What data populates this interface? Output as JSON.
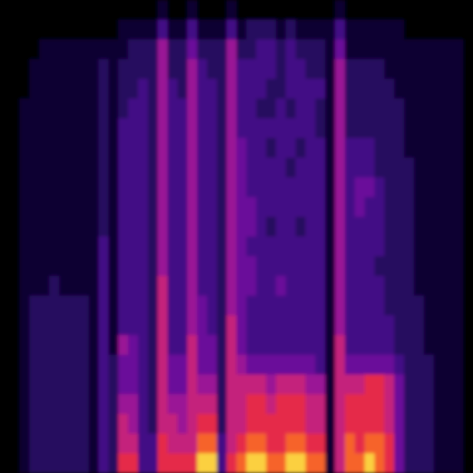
{
  "chart_data": {
    "type": "heatmap",
    "tick_labels": false,
    "zlim": [
      0,
      9
    ],
    "cells": [
      [
        0,
        0,
        0,
        0,
        0,
        0,
        0,
        0,
        0,
        0,
        0,
        0,
        0,
        0,
        0,
        0,
        1,
        0,
        0,
        1,
        0,
        0,
        0,
        1,
        0,
        0,
        0,
        0,
        0,
        0,
        0,
        0,
        0,
        0,
        1,
        0,
        0,
        0,
        0,
        0,
        0,
        0,
        0,
        0,
        0,
        0,
        0,
        0
      ],
      [
        0,
        0,
        0,
        0,
        0,
        0,
        0,
        0,
        0,
        0,
        0,
        0,
        1,
        1,
        1,
        1,
        3,
        1,
        1,
        3,
        1,
        1,
        1,
        3,
        1,
        2,
        2,
        2,
        1,
        2,
        1,
        1,
        1,
        1,
        3,
        1,
        1,
        1,
        1,
        1,
        1,
        0,
        0,
        0,
        0,
        0,
        0,
        0
      ],
      [
        0,
        0,
        0,
        0,
        1,
        1,
        1,
        1,
        1,
        1,
        1,
        1,
        1,
        2,
        2,
        2,
        5,
        2,
        2,
        4,
        2,
        2,
        2,
        5,
        2,
        2,
        3,
        3,
        2,
        3,
        2,
        2,
        2,
        1,
        4,
        1,
        1,
        1,
        1,
        1,
        1,
        1,
        1,
        1,
        1,
        1,
        1,
        0
      ],
      [
        0,
        0,
        0,
        1,
        1,
        1,
        1,
        1,
        1,
        1,
        2,
        1,
        2,
        2,
        2,
        2,
        5,
        2,
        2,
        5,
        3,
        2,
        2,
        5,
        3,
        3,
        3,
        3,
        2,
        3,
        3,
        2,
        2,
        1,
        5,
        2,
        2,
        2,
        2,
        1,
        1,
        1,
        1,
        1,
        1,
        1,
        1,
        0
      ],
      [
        0,
        0,
        0,
        1,
        1,
        1,
        1,
        1,
        1,
        1,
        2,
        1,
        2,
        2,
        3,
        2,
        5,
        3,
        2,
        5,
        3,
        3,
        2,
        5,
        3,
        3,
        3,
        2,
        2,
        3,
        3,
        3,
        3,
        1,
        5,
        2,
        2,
        2,
        2,
        2,
        1,
        1,
        1,
        1,
        1,
        1,
        1,
        0
      ],
      [
        0,
        0,
        1,
        1,
        1,
        1,
        1,
        1,
        1,
        1,
        2,
        1,
        2,
        3,
        3,
        2,
        5,
        3,
        3,
        5,
        3,
        3,
        2,
        5,
        3,
        3,
        2,
        2,
        3,
        2,
        3,
        3,
        2,
        1,
        5,
        2,
        2,
        2,
        2,
        2,
        2,
        1,
        1,
        1,
        1,
        1,
        1,
        0
      ],
      [
        0,
        0,
        1,
        1,
        1,
        1,
        1,
        1,
        1,
        1,
        2,
        1,
        3,
        3,
        3,
        2,
        5,
        3,
        3,
        5,
        3,
        3,
        2,
        5,
        3,
        3,
        3,
        3,
        3,
        3,
        3,
        3,
        2,
        1,
        5,
        2,
        2,
        2,
        2,
        2,
        2,
        1,
        1,
        1,
        1,
        1,
        1,
        0
      ],
      [
        0,
        0,
        1,
        1,
        1,
        1,
        1,
        1,
        1,
        1,
        2,
        1,
        3,
        3,
        3,
        2,
        5,
        3,
        3,
        5,
        3,
        3,
        2,
        5,
        4,
        3,
        3,
        2,
        3,
        3,
        2,
        3,
        3,
        1,
        5,
        3,
        3,
        3,
        2,
        2,
        2,
        1,
        1,
        1,
        1,
        1,
        1,
        0
      ],
      [
        0,
        0,
        1,
        1,
        1,
        1,
        1,
        1,
        1,
        1,
        2,
        1,
        3,
        3,
        3,
        2,
        5,
        3,
        3,
        5,
        3,
        3,
        2,
        5,
        4,
        3,
        3,
        3,
        3,
        2,
        3,
        3,
        3,
        1,
        5,
        3,
        3,
        3,
        2,
        2,
        2,
        2,
        1,
        1,
        1,
        1,
        1,
        0
      ],
      [
        0,
        0,
        1,
        1,
        1,
        1,
        1,
        1,
        1,
        1,
        2,
        1,
        3,
        3,
        3,
        2,
        5,
        3,
        3,
        5,
        3,
        3,
        2,
        5,
        4,
        3,
        3,
        3,
        3,
        3,
        3,
        3,
        3,
        1,
        5,
        3,
        4,
        4,
        3,
        2,
        2,
        2,
        1,
        1,
        1,
        1,
        1,
        0
      ],
      [
        0,
        0,
        1,
        1,
        1,
        1,
        1,
        1,
        1,
        1,
        2,
        1,
        3,
        3,
        3,
        2,
        5,
        3,
        3,
        5,
        3,
        3,
        2,
        5,
        4,
        4,
        3,
        3,
        3,
        3,
        3,
        3,
        3,
        1,
        5,
        3,
        4,
        3,
        3,
        2,
        2,
        2,
        1,
        1,
        1,
        1,
        1,
        0
      ],
      [
        0,
        0,
        1,
        1,
        1,
        1,
        1,
        1,
        1,
        1,
        2,
        1,
        3,
        3,
        3,
        2,
        5,
        3,
        3,
        5,
        3,
        3,
        2,
        5,
        4,
        4,
        3,
        2,
        3,
        3,
        2,
        3,
        3,
        1,
        5,
        3,
        3,
        3,
        3,
        2,
        2,
        2,
        1,
        1,
        1,
        1,
        1,
        0
      ],
      [
        0,
        0,
        1,
        1,
        1,
        1,
        1,
        1,
        1,
        1,
        3,
        1,
        3,
        3,
        3,
        2,
        5,
        3,
        3,
        5,
        3,
        3,
        2,
        5,
        4,
        3,
        3,
        3,
        3,
        3,
        3,
        3,
        3,
        1,
        5,
        3,
        3,
        3,
        3,
        2,
        2,
        2,
        1,
        1,
        1,
        1,
        1,
        0
      ],
      [
        0,
        0,
        1,
        1,
        1,
        1,
        1,
        1,
        1,
        1,
        3,
        1,
        3,
        3,
        3,
        2,
        5,
        3,
        3,
        5,
        3,
        3,
        2,
        5,
        4,
        4,
        3,
        3,
        3,
        3,
        3,
        3,
        3,
        1,
        5,
        3,
        3,
        3,
        2,
        2,
        2,
        2,
        1,
        1,
        1,
        1,
        1,
        0
      ],
      [
        0,
        0,
        1,
        1,
        1,
        2,
        1,
        1,
        1,
        1,
        3,
        1,
        3,
        3,
        3,
        2,
        6,
        3,
        3,
        5,
        3,
        3,
        2,
        5,
        4,
        4,
        3,
        3,
        4,
        3,
        3,
        3,
        3,
        1,
        5,
        3,
        3,
        3,
        3,
        2,
        2,
        2,
        1,
        1,
        1,
        1,
        1,
        0
      ],
      [
        0,
        0,
        1,
        2,
        2,
        2,
        2,
        2,
        2,
        1,
        3,
        1,
        3,
        3,
        3,
        2,
        6,
        3,
        3,
        5,
        4,
        3,
        2,
        5,
        4,
        3,
        3,
        3,
        3,
        3,
        3,
        3,
        3,
        1,
        5,
        3,
        3,
        3,
        3,
        2,
        2,
        2,
        2,
        1,
        1,
        1,
        1,
        0
      ],
      [
        0,
        0,
        1,
        2,
        2,
        2,
        2,
        2,
        2,
        1,
        3,
        1,
        3,
        3,
        3,
        2,
        6,
        3,
        3,
        5,
        4,
        3,
        2,
        6,
        4,
        3,
        3,
        3,
        3,
        3,
        3,
        3,
        3,
        1,
        5,
        3,
        3,
        3,
        3,
        3,
        2,
        2,
        2,
        1,
        1,
        1,
        1,
        0
      ],
      [
        0,
        0,
        1,
        2,
        2,
        2,
        2,
        2,
        2,
        1,
        3,
        1,
        5,
        4,
        3,
        2,
        6,
        3,
        3,
        6,
        4,
        4,
        2,
        6,
        4,
        3,
        3,
        3,
        3,
        3,
        3,
        3,
        3,
        1,
        6,
        3,
        3,
        3,
        3,
        3,
        2,
        2,
        2,
        1,
        1,
        1,
        1,
        0
      ],
      [
        0,
        0,
        1,
        2,
        2,
        2,
        2,
        2,
        2,
        1,
        3,
        2,
        4,
        4,
        3,
        2,
        6,
        4,
        4,
        6,
        4,
        4,
        2,
        6,
        5,
        4,
        4,
        4,
        4,
        4,
        4,
        4,
        3,
        1,
        6,
        4,
        4,
        4,
        4,
        4,
        3,
        2,
        2,
        2,
        1,
        1,
        1,
        0
      ],
      [
        0,
        0,
        1,
        2,
        2,
        2,
        2,
        2,
        2,
        1,
        3,
        2,
        4,
        4,
        3,
        2,
        6,
        4,
        4,
        6,
        5,
        5,
        2,
        6,
        6,
        6,
        6,
        5,
        6,
        6,
        6,
        5,
        5,
        1,
        6,
        6,
        6,
        7,
        7,
        6,
        4,
        2,
        2,
        2,
        1,
        1,
        1,
        0
      ],
      [
        0,
        0,
        1,
        2,
        2,
        2,
        2,
        2,
        2,
        1,
        3,
        2,
        5,
        5,
        3,
        2,
        6,
        5,
        5,
        6,
        6,
        6,
        2,
        6,
        6,
        7,
        7,
        6,
        7,
        7,
        7,
        6,
        6,
        1,
        6,
        7,
        7,
        7,
        7,
        6,
        4,
        2,
        2,
        2,
        1,
        1,
        1,
        0
      ],
      [
        0,
        0,
        1,
        2,
        2,
        2,
        2,
        2,
        2,
        1,
        3,
        2,
        6,
        5,
        3,
        2,
        6,
        6,
        5,
        6,
        7,
        7,
        2,
        6,
        6,
        7,
        7,
        7,
        7,
        7,
        7,
        6,
        6,
        1,
        6,
        7,
        7,
        7,
        7,
        6,
        4,
        2,
        2,
        2,
        1,
        1,
        1,
        0
      ],
      [
        0,
        0,
        1,
        2,
        2,
        2,
        2,
        2,
        2,
        1,
        3,
        2,
        6,
        6,
        3,
        3,
        7,
        6,
        6,
        6,
        8,
        8,
        3,
        6,
        7,
        8,
        8,
        7,
        7,
        8,
        8,
        7,
        7,
        1,
        6,
        8,
        7,
        8,
        8,
        7,
        4,
        2,
        2,
        2,
        1,
        1,
        1,
        0
      ],
      [
        0,
        0,
        1,
        2,
        2,
        2,
        2,
        2,
        2,
        1,
        3,
        2,
        7,
        7,
        3,
        3,
        7,
        7,
        7,
        7,
        9,
        9,
        3,
        7,
        8,
        9,
        9,
        8,
        8,
        9,
        9,
        8,
        8,
        1,
        6,
        8,
        8,
        9,
        8,
        7,
        4,
        2,
        2,
        2,
        1,
        1,
        1,
        0
      ]
    ]
  }
}
